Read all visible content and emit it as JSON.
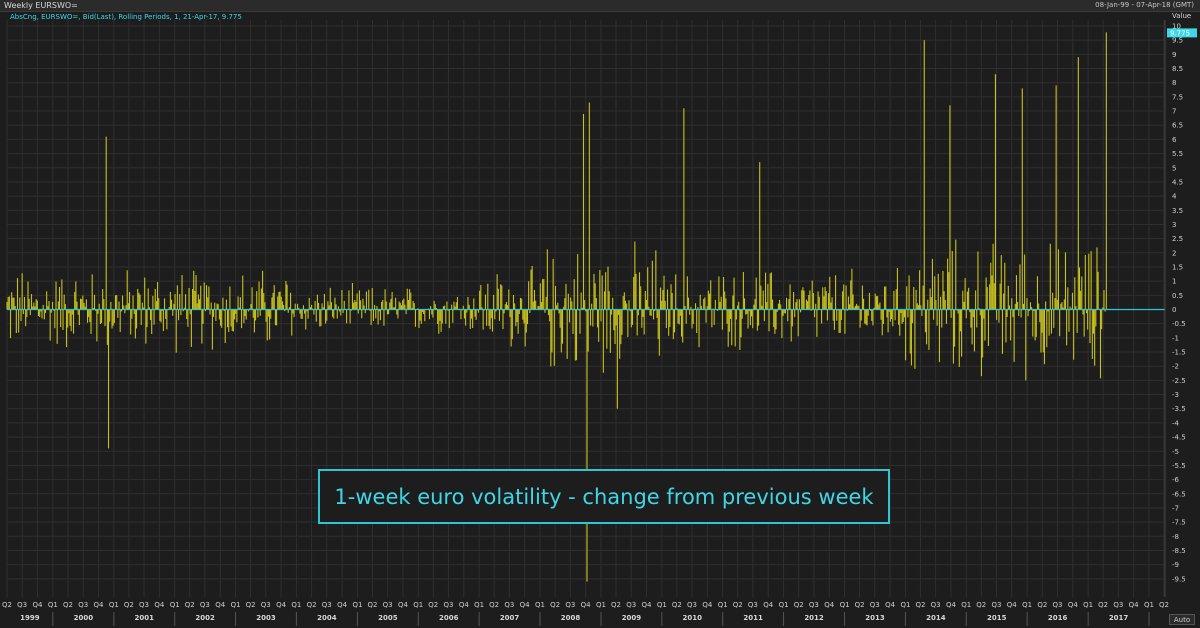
{
  "window": {
    "title": "Weekly EURSWO=",
    "date_range": "08-Jan-99 - 07-Apr-18 (GMT)"
  },
  "legend_text": "AbsCng, EURSWO=, Bid(Last), Rolling Periods, 1, 21-Apr-17, 9.775",
  "value_axis_label": "Value",
  "last_value_badge": "9.775",
  "auto_button": "Auto",
  "colors": {
    "background": "#1d1d1d",
    "bars": "#c8c21c",
    "zero_line": "#2ec6d4",
    "accent": "#3fd6e8",
    "grid": "#2f2f2f"
  },
  "chart_data": {
    "type": "bar",
    "title": "1-week euro volatility - change from previous week",
    "ylim": [
      -10,
      10
    ],
    "y_ticks": [
      "10",
      "9.5",
      "9",
      "8.5",
      "8",
      "7.5",
      "7",
      "6.5",
      "6",
      "5.5",
      "5",
      "4.5",
      "4",
      "3.5",
      "3",
      "2.5",
      "2",
      "1.5",
      "1",
      "0.5",
      "0",
      "-0.5",
      "-1",
      "-1.5",
      "-2",
      "-2.5",
      "-3",
      "-3.5",
      "-4",
      "-4.5",
      "-5",
      "-5.5",
      "-6",
      "-6.5",
      "-7",
      "-7.5",
      "-8",
      "-8.5",
      "-9",
      "-9.5"
    ],
    "quarter_ticks": [
      "Q2",
      "Q3",
      "Q4",
      "Q1",
      "Q2",
      "Q3",
      "Q4",
      "Q1",
      "Q2",
      "Q3",
      "Q4",
      "Q1",
      "Q2",
      "Q3",
      "Q4",
      "Q1",
      "Q2",
      "Q3",
      "Q4",
      "Q1",
      "Q2",
      "Q3",
      "Q4",
      "Q1",
      "Q2",
      "Q3",
      "Q4",
      "Q1",
      "Q2",
      "Q3",
      "Q4",
      "Q1",
      "Q2",
      "Q3",
      "Q4",
      "Q1",
      "Q2",
      "Q3",
      "Q4",
      "Q1",
      "Q2",
      "Q3",
      "Q4",
      "Q1",
      "Q2",
      "Q3",
      "Q4",
      "Q1",
      "Q2",
      "Q3",
      "Q4",
      "Q1",
      "Q2",
      "Q3",
      "Q4",
      "Q1",
      "Q2",
      "Q3",
      "Q4",
      "Q1",
      "Q2",
      "Q3",
      "Q4",
      "Q1",
      "Q2",
      "Q3",
      "Q4",
      "Q1",
      "Q2",
      "Q3",
      "Q4",
      "Q1",
      "Q2",
      "Q3",
      "Q4",
      "Q1",
      "Q2"
    ],
    "years": [
      "1999",
      "2000",
      "2001",
      "2002",
      "2003",
      "2004",
      "2005",
      "2006",
      "2007",
      "2008",
      "2009",
      "2010",
      "2011",
      "2012",
      "2013",
      "2014",
      "2015",
      "2016",
      "2017"
    ],
    "x_start": "1999-04-01",
    "x_end": "2018-04-07",
    "last_date": "2017-04-21",
    "last_value": 9.775,
    "notable_weeks": [
      {
        "date": "2000-11-17",
        "value": 6.1
      },
      {
        "date": "2000-12-01",
        "value": -4.9
      },
      {
        "date": "2008-09-19",
        "value": 6.9
      },
      {
        "date": "2008-10-10",
        "value": -9.6
      },
      {
        "date": "2008-10-24",
        "value": 7.3
      },
      {
        "date": "2009-04-10",
        "value": -3.5
      },
      {
        "date": "2010-05-14",
        "value": 7.1
      },
      {
        "date": "2011-08-12",
        "value": 5.2
      },
      {
        "date": "2014-04-25",
        "value": 9.5
      },
      {
        "date": "2014-09-26",
        "value": 7.2
      },
      {
        "date": "2015-06-26",
        "value": 8.3
      },
      {
        "date": "2015-12-04",
        "value": 7.8
      },
      {
        "date": "2016-06-24",
        "value": 7.9
      },
      {
        "date": "2016-11-04",
        "value": 8.9
      },
      {
        "date": "2017-04-21",
        "value": 9.775
      }
    ],
    "grid": true,
    "legend_position": "top-left"
  }
}
